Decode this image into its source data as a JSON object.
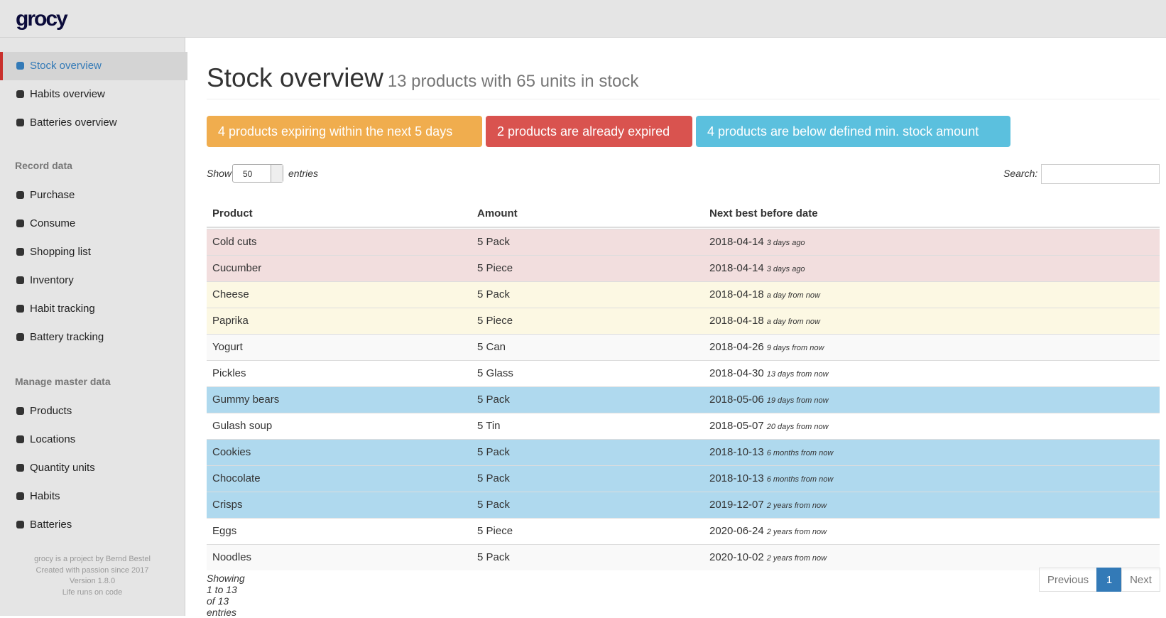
{
  "header": {
    "logo": "grocy"
  },
  "sidebar": {
    "nav": [
      "Stock overview",
      "Habits overview",
      "Batteries overview"
    ],
    "record_title": "Record data",
    "record": [
      "Purchase",
      "Consume",
      "Shopping list",
      "Inventory",
      "Habit tracking",
      "Battery tracking"
    ],
    "master_title": "Manage master data",
    "master": [
      "Products",
      "Locations",
      "Quantity units",
      "Habits",
      "Batteries"
    ],
    "footer": [
      "grocy is a project by Bernd Bestel",
      "Created with passion since 2017",
      "Version 1.8.0",
      "Life runs on code"
    ]
  },
  "page": {
    "title": "Stock overview",
    "subtitle": "13 products with 65 units in stock",
    "alerts": [
      {
        "text": "4 products expiring within the next 5 days",
        "color": "#f0ad4e"
      },
      {
        "text": "2 products are already expired",
        "color": "#d9534f"
      },
      {
        "text": "4 products are below defined min. stock amount",
        "color": "#5bc0de"
      }
    ],
    "show": "Show",
    "page_size": "50",
    "entries": "entries",
    "search": "Search:",
    "columns": [
      "Product",
      "Amount",
      "Next best before date"
    ],
    "rows": [
      {
        "product": "Cold cuts",
        "amount": "5 Pack",
        "date": "2018-04-14",
        "relative": "3 days ago",
        "color": "#f2dede"
      },
      {
        "product": "Cucumber",
        "amount": "5 Piece",
        "date": "2018-04-14",
        "relative": "3 days ago",
        "color": "#f2dede"
      },
      {
        "product": "Cheese",
        "amount": "5 Pack",
        "date": "2018-04-18",
        "relative": "a day from now",
        "color": "#fcf8e3"
      },
      {
        "product": "Paprika",
        "amount": "5 Piece",
        "date": "2018-04-18",
        "relative": "a day from now",
        "color": "#fcf8e3"
      },
      {
        "product": "Yogurt",
        "amount": "5 Can",
        "date": "2018-04-26",
        "relative": "9 days from now",
        "color": "#f9f9f9"
      },
      {
        "product": "Pickles",
        "amount": "5 Glass",
        "date": "2018-04-30",
        "relative": "13 days from now",
        "color": "#ffffff"
      },
      {
        "product": "Gummy bears",
        "amount": "5 Pack",
        "date": "2018-05-06",
        "relative": "19 days from now",
        "color": "#afd9ee"
      },
      {
        "product": "Gulash soup",
        "amount": "5 Tin",
        "date": "2018-05-07",
        "relative": "20 days from now",
        "color": "#ffffff"
      },
      {
        "product": "Cookies",
        "amount": "5 Pack",
        "date": "2018-10-13",
        "relative": "6 months from now",
        "color": "#afd9ee"
      },
      {
        "product": "Chocolate",
        "amount": "5 Pack",
        "date": "2018-10-13",
        "relative": "6 months from now",
        "color": "#afd9ee"
      },
      {
        "product": "Crisps",
        "amount": "5 Pack",
        "date": "2019-12-07",
        "relative": "2 years from now",
        "color": "#afd9ee"
      },
      {
        "product": "Eggs",
        "amount": "5 Piece",
        "date": "2020-06-24",
        "relative": "2 years from now",
        "color": "#ffffff"
      },
      {
        "product": "Noodles",
        "amount": "5 Pack",
        "date": "2020-10-02",
        "relative": "2 years from now",
        "color": "#f9f9f9"
      }
    ],
    "info": "Showing 1 to 13 of 13 entries",
    "pagination": [
      "Previous",
      "1",
      "Next"
    ]
  }
}
